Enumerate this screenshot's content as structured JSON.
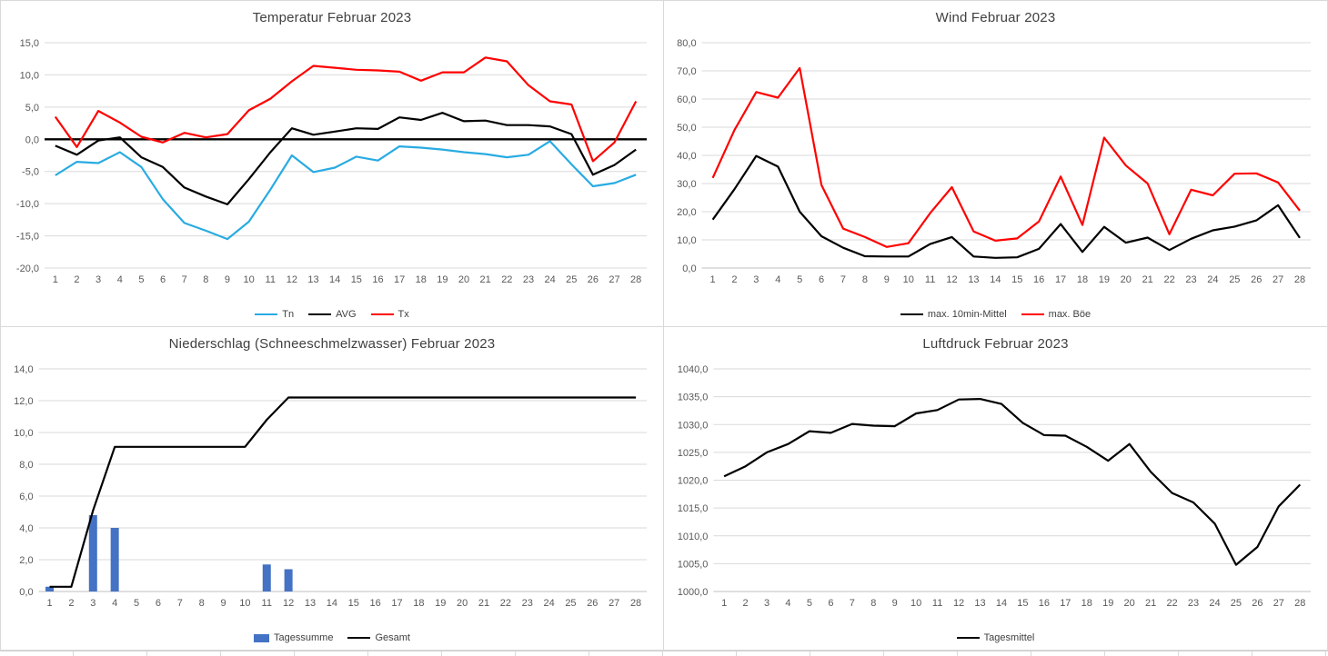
{
  "window": {
    "background": "#ffffff",
    "layout": "2x2-excel-charts"
  },
  "colors": {
    "grid": "#d9d9d9",
    "axis": "#bfbfbf",
    "tick_label": "#595959",
    "title": "#404040",
    "tn_blue": "#29ABE2",
    "series_black": "#000000",
    "series_red": "#FF0000",
    "bar_blue": "#4472C4"
  },
  "chart_data": [
    {
      "id": "temperature",
      "type": "line",
      "title": "Temperatur Februar 2023",
      "xlabel": "",
      "ylabel": "",
      "ylim": [
        -20,
        15
      ],
      "ystep": 5,
      "grid": true,
      "zero_axis": true,
      "legend_position": "bottom",
      "categories": [
        1,
        2,
        3,
        4,
        5,
        6,
        7,
        8,
        9,
        10,
        11,
        12,
        13,
        14,
        15,
        16,
        17,
        18,
        19,
        20,
        21,
        22,
        23,
        24,
        25,
        26,
        27,
        28
      ],
      "series": [
        {
          "name": "Tn",
          "type": "line",
          "color": "#29ABE2",
          "values": [
            -5.6,
            -3.5,
            -3.7,
            -2.0,
            -4.3,
            -9.3,
            -13.0,
            -14.2,
            -15.5,
            -12.8,
            -7.8,
            -2.5,
            -5.1,
            -4.4,
            -2.7,
            -3.3,
            -1.1,
            -1.3,
            -1.6,
            -2.0,
            -2.3,
            -2.8,
            -2.4,
            -0.3,
            -3.9,
            -7.3,
            -6.8,
            -5.5
          ]
        },
        {
          "name": "AVG",
          "type": "line",
          "color": "#000000",
          "values": [
            -1.0,
            -2.4,
            -0.2,
            0.3,
            -2.8,
            -4.3,
            -7.5,
            -8.9,
            -10.1,
            -6.2,
            -2.0,
            1.7,
            0.7,
            1.2,
            1.7,
            1.6,
            3.4,
            3.0,
            4.1,
            2.8,
            2.9,
            2.2,
            2.2,
            2.0,
            0.8,
            -5.5,
            -4.0,
            -1.6
          ]
        },
        {
          "name": "Tx",
          "type": "line",
          "color": "#FF0000",
          "values": [
            3.5,
            -1.2,
            4.4,
            2.6,
            0.4,
            -0.5,
            1.0,
            0.3,
            0.8,
            4.5,
            6.3,
            9.0,
            11.4,
            11.1,
            10.8,
            10.7,
            10.5,
            9.1,
            10.4,
            10.4,
            12.7,
            12.1,
            8.4,
            5.9,
            5.4,
            -3.4,
            -0.5,
            5.9
          ]
        }
      ]
    },
    {
      "id": "wind",
      "type": "line",
      "title": "Wind Februar 2023",
      "xlabel": "",
      "ylabel": "",
      "ylim": [
        0,
        80
      ],
      "ystep": 10,
      "grid": true,
      "zero_axis": false,
      "legend_position": "bottom",
      "categories": [
        1,
        2,
        3,
        4,
        5,
        6,
        7,
        8,
        9,
        10,
        11,
        12,
        13,
        14,
        15,
        16,
        17,
        18,
        19,
        20,
        21,
        22,
        23,
        24,
        25,
        26,
        27,
        28
      ],
      "series": [
        {
          "name": "max. 10min-Mittel",
          "type": "line",
          "color": "#000000",
          "values": [
            17.2,
            28.0,
            39.8,
            36.0,
            20.0,
            11.3,
            7.2,
            4.2,
            4.1,
            4.1,
            8.5,
            11.0,
            4.1,
            3.6,
            3.8,
            6.8,
            15.6,
            5.7,
            14.6,
            9.0,
            10.8,
            6.4,
            10.4,
            13.4,
            14.7,
            16.9,
            22.3,
            10.7
          ]
        },
        {
          "name": "max. Böe",
          "type": "line",
          "color": "#FF0000",
          "values": [
            32.0,
            49.0,
            62.5,
            60.5,
            71.0,
            29.5,
            14.0,
            11.0,
            7.5,
            8.8,
            19.5,
            28.7,
            13.0,
            9.7,
            10.5,
            16.5,
            32.5,
            15.3,
            46.3,
            36.4,
            30.0,
            12.0,
            27.8,
            25.8,
            33.5,
            33.6,
            30.4,
            20.4
          ]
        }
      ]
    },
    {
      "id": "precipitation",
      "type": "bar",
      "title": "Niederschlag (Schneeschmelzwasser) Februar 2023",
      "xlabel": "",
      "ylabel": "",
      "ylim": [
        0,
        14
      ],
      "ystep": 2,
      "grid": true,
      "zero_axis": false,
      "legend_position": "bottom",
      "categories": [
        1,
        2,
        3,
        4,
        5,
        6,
        7,
        8,
        9,
        10,
        11,
        12,
        13,
        14,
        15,
        16,
        17,
        18,
        19,
        20,
        21,
        22,
        23,
        24,
        25,
        26,
        27,
        28
      ],
      "series": [
        {
          "name": "Tagessumme",
          "type": "bar",
          "color": "#4472C4",
          "values": [
            0.3,
            0,
            4.8,
            4.0,
            0,
            0,
            0,
            0,
            0,
            0,
            1.7,
            1.4,
            0,
            0,
            0,
            0,
            0,
            0,
            0,
            0,
            0,
            0,
            0,
            0,
            0,
            0,
            0,
            0
          ]
        },
        {
          "name": "Gesamt",
          "type": "line",
          "color": "#000000",
          "values": [
            0.3,
            0.3,
            5.1,
            9.1,
            9.1,
            9.1,
            9.1,
            9.1,
            9.1,
            9.1,
            10.8,
            12.2,
            12.2,
            12.2,
            12.2,
            12.2,
            12.2,
            12.2,
            12.2,
            12.2,
            12.2,
            12.2,
            12.2,
            12.2,
            12.2,
            12.2,
            12.2,
            12.2
          ]
        }
      ]
    },
    {
      "id": "pressure",
      "type": "line",
      "title": "Luftdruck Februar 2023",
      "xlabel": "",
      "ylabel": "",
      "ylim": [
        1000,
        1040
      ],
      "ystep": 5,
      "grid": true,
      "zero_axis": false,
      "legend_position": "bottom",
      "categories": [
        1,
        2,
        3,
        4,
        5,
        6,
        7,
        8,
        9,
        10,
        11,
        12,
        13,
        14,
        15,
        16,
        17,
        18,
        19,
        20,
        21,
        22,
        23,
        24,
        25,
        26,
        27,
        28
      ],
      "series": [
        {
          "name": "Tagesmittel",
          "type": "line",
          "color": "#000000",
          "values": [
            1020.7,
            1022.5,
            1025.0,
            1026.5,
            1028.8,
            1028.5,
            1030.1,
            1029.8,
            1029.7,
            1032.0,
            1032.6,
            1034.5,
            1034.6,
            1033.7,
            1030.3,
            1028.1,
            1028.0,
            1026.0,
            1023.5,
            1026.5,
            1021.5,
            1017.7,
            1016.0,
            1012.2,
            1004.8,
            1008.0,
            1015.3,
            1019.2
          ]
        }
      ]
    }
  ]
}
